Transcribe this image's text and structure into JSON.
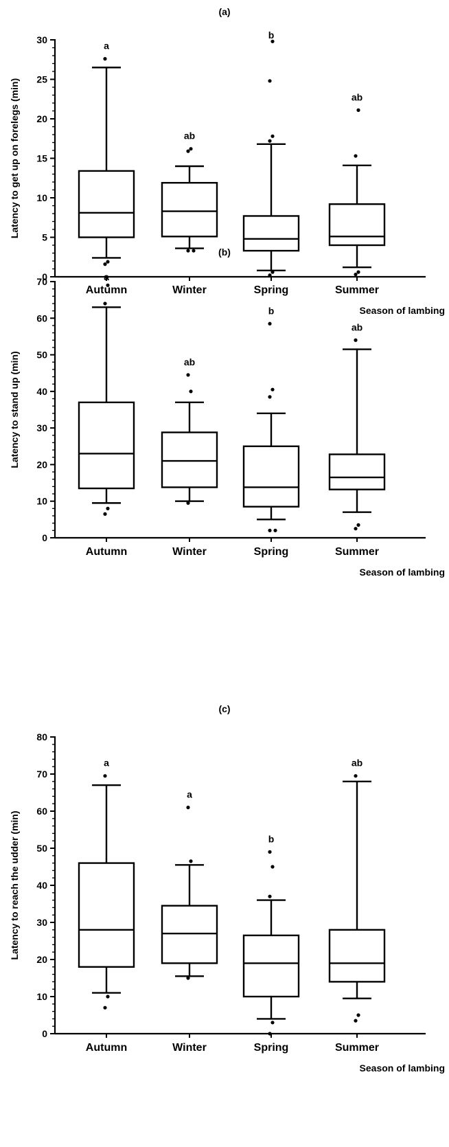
{
  "chart_data": [
    {
      "type": "box",
      "title": "(a)",
      "xlabel": "Season of lambing",
      "ylabel": "Latency to get up on forelegs (min)",
      "ylim": [
        0,
        30
      ],
      "yticks": [
        0,
        5,
        10,
        15,
        20,
        25,
        30
      ],
      "categories": [
        "Autumn",
        "Winter",
        "Spring",
        "Summer"
      ],
      "boxes": [
        {
          "whisker_low": 2.4,
          "q1": 5.0,
          "median": 8.1,
          "q3": 13.4,
          "whisker_high": 26.5,
          "outliers": [
            1.6,
            1.9,
            27.6
          ],
          "letter": "a"
        },
        {
          "whisker_low": 3.6,
          "q1": 5.1,
          "median": 8.3,
          "q3": 11.9,
          "whisker_high": 14.0,
          "outliers": [
            3.3,
            3.3,
            15.9,
            16.2
          ],
          "letter": "ab"
        },
        {
          "whisker_low": 0.8,
          "q1": 3.3,
          "median": 4.8,
          "q3": 7.7,
          "whisker_high": 16.8,
          "outliers": [
            0.2,
            0.6,
            17.2,
            17.8,
            24.8,
            29.8
          ],
          "letter": "b"
        },
        {
          "whisker_low": 1.2,
          "q1": 4.0,
          "median": 5.1,
          "q3": 9.2,
          "whisker_high": 14.1,
          "outliers": [
            0.3,
            0.6,
            15.3,
            21.1
          ],
          "letter": "ab"
        }
      ]
    },
    {
      "type": "box",
      "title": "(b)",
      "xlabel": "Season of lambing",
      "ylabel": "Latency to stand up (min)",
      "ylim": [
        0,
        70
      ],
      "yticks": [
        0,
        10,
        20,
        30,
        40,
        50,
        60,
        70
      ],
      "categories": [
        "Autumn",
        "Winter",
        "Spring",
        "Summer"
      ],
      "boxes": [
        {
          "whisker_low": 9.5,
          "q1": 13.5,
          "median": 23.0,
          "q3": 37.0,
          "whisker_high": 63.0,
          "outliers": [
            6.5,
            8.0,
            64.0,
            69.0
          ],
          "letter": "a"
        },
        {
          "whisker_low": 10.0,
          "q1": 13.8,
          "median": 21.0,
          "q3": 28.8,
          "whisker_high": 37.0,
          "outliers": [
            9.5,
            40.0,
            44.5
          ],
          "letter": "ab"
        },
        {
          "whisker_low": 5.0,
          "q1": 8.5,
          "median": 13.8,
          "q3": 25.0,
          "whisker_high": 34.0,
          "outliers": [
            2.0,
            2.0,
            38.5,
            40.5,
            58.5
          ],
          "letter": "b"
        },
        {
          "whisker_low": 7.0,
          "q1": 13.2,
          "median": 16.5,
          "q3": 22.8,
          "whisker_high": 51.5,
          "outliers": [
            2.5,
            3.5,
            54.0
          ],
          "letter": "ab"
        }
      ]
    },
    {
      "type": "box",
      "title": "(c)",
      "xlabel": "Season of lambing",
      "ylabel": "Latency to reach the udder (min)",
      "ylim": [
        0,
        80
      ],
      "yticks": [
        0,
        10,
        20,
        30,
        40,
        50,
        60,
        70,
        80
      ],
      "categories": [
        "Autumn",
        "Winter",
        "Spring",
        "Summer"
      ],
      "boxes": [
        {
          "whisker_low": 11.0,
          "q1": 18.0,
          "median": 28.0,
          "q3": 46.0,
          "whisker_high": 67.0,
          "outliers": [
            7.0,
            10.0,
            69.5
          ],
          "letter": "a"
        },
        {
          "whisker_low": 15.5,
          "q1": 19.0,
          "median": 27.0,
          "q3": 34.5,
          "whisker_high": 45.5,
          "outliers": [
            15.0,
            46.5,
            61.0
          ],
          "letter": "a"
        },
        {
          "whisker_low": 4.0,
          "q1": 10.0,
          "median": 19.0,
          "q3": 26.5,
          "whisker_high": 36.0,
          "outliers": [
            0.0,
            3.0,
            37.0,
            45.0,
            49.0
          ],
          "letter": "b"
        },
        {
          "whisker_low": 9.5,
          "q1": 14.0,
          "median": 19.0,
          "q3": 28.0,
          "whisker_high": 68.0,
          "outliers": [
            3.5,
            5.0,
            69.5
          ],
          "letter": "ab"
        }
      ]
    }
  ]
}
